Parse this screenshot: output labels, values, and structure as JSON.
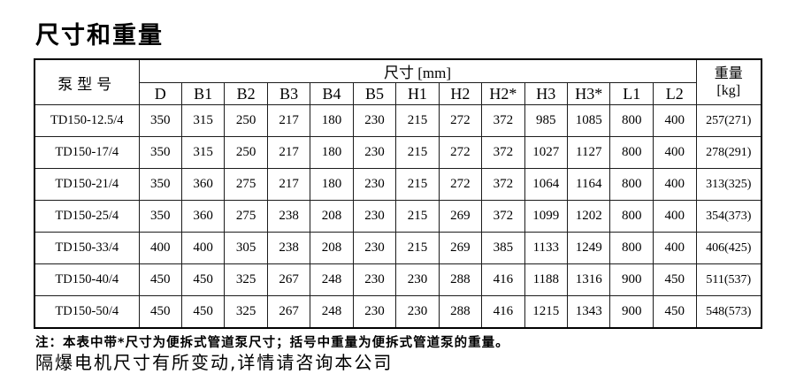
{
  "title": "尺寸和重量",
  "table": {
    "model_header": "泵型号",
    "dims_group_header": "尺寸 [mm]",
    "weight_header_line1": "重量",
    "weight_header_line2": "[kg]",
    "dim_headers": [
      "D",
      "B1",
      "B2",
      "B3",
      "B4",
      "B5",
      "H1",
      "H2",
      "H2*",
      "H3",
      "H3*",
      "L1",
      "L2"
    ],
    "rows": [
      {
        "model": "TD150-12.5/4",
        "values": [
          "350",
          "315",
          "250",
          "217",
          "180",
          "230",
          "215",
          "272",
          "372",
          "985",
          "1085",
          "800",
          "400"
        ],
        "weight": "257(271)"
      },
      {
        "model": "TD150-17/4",
        "values": [
          "350",
          "315",
          "250",
          "217",
          "180",
          "230",
          "215",
          "272",
          "372",
          "1027",
          "1127",
          "800",
          "400"
        ],
        "weight": "278(291)"
      },
      {
        "model": "TD150-21/4",
        "values": [
          "350",
          "360",
          "275",
          "217",
          "180",
          "230",
          "215",
          "272",
          "372",
          "1064",
          "1164",
          "800",
          "400"
        ],
        "weight": "313(325)"
      },
      {
        "model": "TD150-25/4",
        "values": [
          "350",
          "360",
          "275",
          "238",
          "208",
          "230",
          "215",
          "269",
          "372",
          "1099",
          "1202",
          "800",
          "400"
        ],
        "weight": "354(373)"
      },
      {
        "model": "TD150-33/4",
        "values": [
          "400",
          "400",
          "305",
          "238",
          "208",
          "230",
          "215",
          "269",
          "385",
          "1133",
          "1249",
          "800",
          "400"
        ],
        "weight": "406(425)"
      },
      {
        "model": "TD150-40/4",
        "values": [
          "450",
          "450",
          "325",
          "267",
          "248",
          "230",
          "230",
          "288",
          "416",
          "1188",
          "1316",
          "900",
          "450"
        ],
        "weight": "511(537)"
      },
      {
        "model": "TD150-50/4",
        "values": [
          "450",
          "450",
          "325",
          "267",
          "248",
          "230",
          "230",
          "288",
          "416",
          "1215",
          "1343",
          "900",
          "450"
        ],
        "weight": "548(573)"
      }
    ]
  },
  "notes": {
    "line1": "注：本表中带*尺寸为便拆式管道泵尺寸；括号中重量为便拆式管道泵的重量。",
    "line2": "隔爆电机尺寸有所变动,详情请咨询本公司"
  },
  "colors": {
    "text": "#000000",
    "border": "#1c1c1c",
    "background": "#ffffff"
  }
}
